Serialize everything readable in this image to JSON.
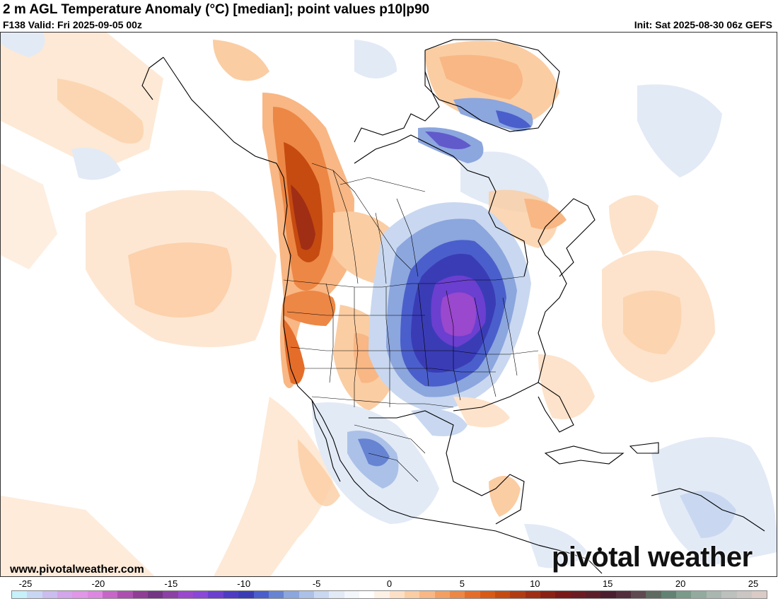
{
  "header": {
    "title": "2 m AGL Temperature Anomaly (°C) [median]; point values p10|p90",
    "forecast": "F138 Valid: Fri 2025-09-05 00z",
    "init": "Init: Sat 2025-08-30 06z GEFS"
  },
  "footer": {
    "site": "www.pivotalweather.com",
    "brand_left": "piv",
    "brand_o": "o",
    "brand_right": "tal weather"
  },
  "colorbar": {
    "units": "°C",
    "range": [
      -25,
      25
    ],
    "tick_labels": [
      "-25",
      "-20",
      "-15",
      "-10",
      "-5",
      "0",
      "5",
      "10",
      "15",
      "20",
      "25"
    ],
    "colors": [
      "#c6f0fa",
      "#c9d6f3",
      "#cbbdef",
      "#d3a5ea",
      "#e196e8",
      "#dd87e2",
      "#c766c8",
      "#ad4fb0",
      "#903d96",
      "#743584",
      "#8c3fa5",
      "#9a48cd",
      "#8a47d8",
      "#6b3fd0",
      "#4e3bc3",
      "#3a3cb6",
      "#4a5fcb",
      "#6784d3",
      "#8ca6de",
      "#abc1e8",
      "#c9d8f0",
      "#e2eaf6",
      "#f2f5fa",
      "#ffffff",
      "#fdf1e6",
      "#fce0c6",
      "#fbcda3",
      "#f8b784",
      "#f39f62",
      "#ed8745",
      "#e56d2a",
      "#d85a16",
      "#c64b10",
      "#b23c12",
      "#9f2e14",
      "#8b2114",
      "#7a1a18",
      "#6b1c22",
      "#5c1f2a",
      "#4b1e2e",
      "#532e3c",
      "#5e4a50",
      "#5f6a60",
      "#628373",
      "#7a9a8a",
      "#93ab9f",
      "#a9b7b0",
      "#bdc1be",
      "#cbc6c4",
      "#dacbc7"
    ]
  },
  "map_layers": [
    {
      "name": "west-warm-anomaly",
      "color": "#f7c49b"
    },
    {
      "name": "pacific-northwest-hot-anomaly",
      "color": "#c64b10"
    },
    {
      "name": "great-lakes-cold-anomaly",
      "color": "#3a3cb6"
    },
    {
      "name": "core-cold-anomaly",
      "color": "#8c3fa5"
    }
  ]
}
